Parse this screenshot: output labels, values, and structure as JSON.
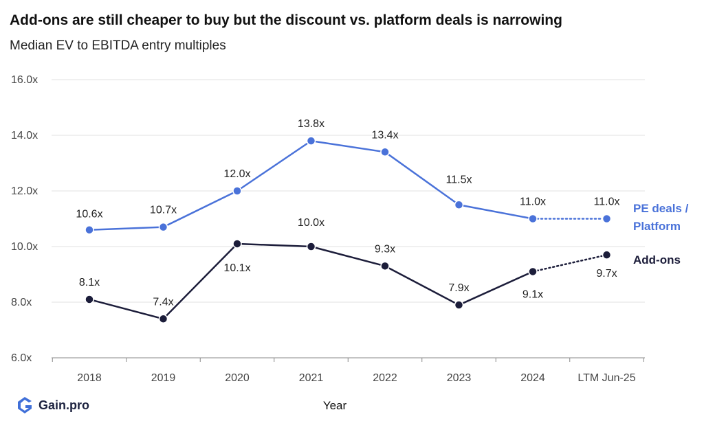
{
  "title": "Add-ons are still cheaper to buy but the discount vs. platform deals is narrowing",
  "subtitle": "Median EV to EBITDA entry multiples",
  "logo_text": "Gain.pro",
  "colors": {
    "platform": "#4a72d9",
    "addons": "#1c1d3a",
    "grid": "#e2e2e2",
    "axis": "#888888"
  },
  "chart_data": {
    "type": "line",
    "categories": [
      "2018",
      "2019",
      "2020",
      "2021",
      "2022",
      "2023",
      "2024",
      "LTM Jun-25"
    ],
    "xlabel": "Year",
    "ylabel": "",
    "ylim": [
      6.0,
      16.0
    ],
    "yticks": [
      6.0,
      8.0,
      10.0,
      12.0,
      14.0,
      16.0
    ],
    "ytick_labels": [
      "6.0x",
      "8.0x",
      "10.0x",
      "12.0x",
      "14.0x",
      "16.0x"
    ],
    "grid": "horizontal",
    "series": [
      {
        "name": "PE deals / Platform",
        "name_lines": [
          "PE deals /",
          "Platform"
        ],
        "color": "#4a72d9",
        "values": [
          10.6,
          10.7,
          12.0,
          13.8,
          13.4,
          11.5,
          11.0,
          11.0
        ],
        "labels": [
          "10.6x",
          "10.7x",
          "12.0x",
          "13.8x",
          "13.4x",
          "11.5x",
          "11.0x",
          "11.0x"
        ],
        "dotted_from_index": 6
      },
      {
        "name": "Add-ons",
        "name_lines": [
          "Add-ons"
        ],
        "color": "#1c1d3a",
        "values": [
          8.1,
          7.4,
          10.1,
          10.0,
          9.3,
          7.9,
          9.1,
          9.7
        ],
        "labels": [
          "8.1x",
          "7.4x",
          "10.1x",
          "10.0x",
          "9.3x",
          "7.9x",
          "9.1x",
          "9.7x"
        ],
        "dotted_from_index": 6
      }
    ]
  }
}
